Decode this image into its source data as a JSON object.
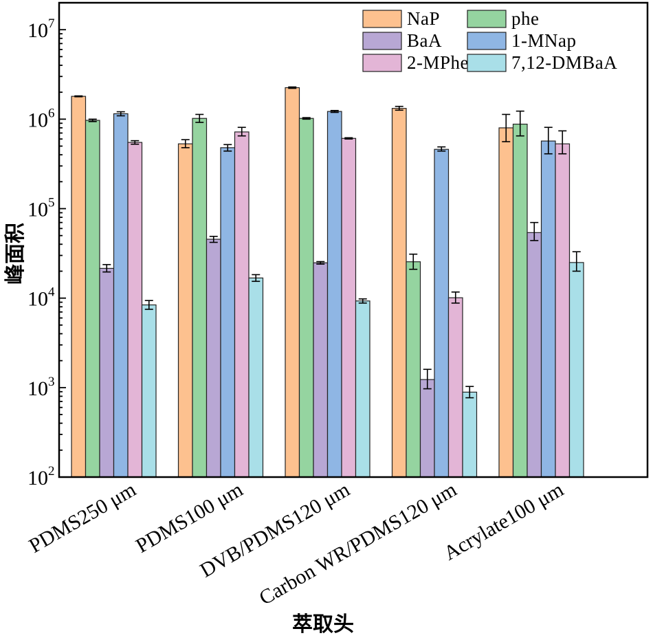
{
  "chart_data": {
    "type": "bar",
    "xlabel": "萃取头",
    "ylabel": "峰面积",
    "yscale": "log",
    "ylim": [
      100,
      20000000
    ],
    "yticks": [
      {
        "value": 100,
        "base": "10",
        "exp": "2"
      },
      {
        "value": 1000,
        "base": "10",
        "exp": "3"
      },
      {
        "value": 10000,
        "base": "10",
        "exp": "4"
      },
      {
        "value": 100000,
        "base": "10",
        "exp": "5"
      },
      {
        "value": 1000000,
        "base": "10",
        "exp": "6"
      },
      {
        "value": 10000000,
        "base": "10",
        "exp": "7"
      }
    ],
    "categories": [
      "PDMS250 μm",
      "PDMS100 μm",
      "DVB/PDMS120 μm",
      "Carbon WR/PDMS120 μm",
      "Acrylate100 μm"
    ],
    "legend_position": "top-right",
    "grid": false,
    "error_bars": true,
    "series": [
      {
        "name": "NaP",
        "color": "#fdc18f",
        "values": [
          1800000,
          530000,
          2250000,
          1320000,
          800000
        ],
        "err_low": [
          1780000,
          480000,
          2210000,
          1260000,
          560000
        ],
        "err_high": [
          1820000,
          590000,
          2290000,
          1390000,
          1130000
        ]
      },
      {
        "name": "phe",
        "color": "#95d4a0",
        "values": [
          970000,
          1020000,
          1020000,
          25500,
          880000
        ],
        "err_low": [
          940000,
          920000,
          1000000,
          21000,
          650000
        ],
        "err_high": [
          1000000,
          1130000,
          1040000,
          31000,
          1230000
        ]
      },
      {
        "name": "BaA",
        "color": "#b8a7d4",
        "values": [
          21500,
          45500,
          24800,
          1230,
          54000
        ],
        "err_low": [
          19600,
          42000,
          24000,
          970,
          44000
        ],
        "err_high": [
          23700,
          49000,
          25600,
          1600,
          70000
        ]
      },
      {
        "name": "1-MNap",
        "color": "#8fb6e4",
        "values": [
          1150000,
          480000,
          1220000,
          460000,
          570000
        ],
        "err_low": [
          1090000,
          440000,
          1190000,
          440000,
          410000
        ],
        "err_high": [
          1210000,
          520000,
          1250000,
          490000,
          810000
        ]
      },
      {
        "name": "2-MPhe",
        "color": "#e3b5d6",
        "values": [
          550000,
          720000,
          610000,
          10100,
          530000
        ],
        "err_low": [
          525000,
          650000,
          600000,
          8800,
          410000
        ],
        "err_high": [
          575000,
          810000,
          620000,
          11700,
          740000
        ]
      },
      {
        "name": "7,12-DMBaA",
        "color": "#a9dfe8",
        "values": [
          8400,
          16800,
          9300,
          890,
          25000
        ],
        "err_low": [
          7500,
          15400,
          8800,
          770,
          20000
        ],
        "err_high": [
          9400,
          18300,
          9800,
          1030,
          33000
        ]
      }
    ]
  }
}
